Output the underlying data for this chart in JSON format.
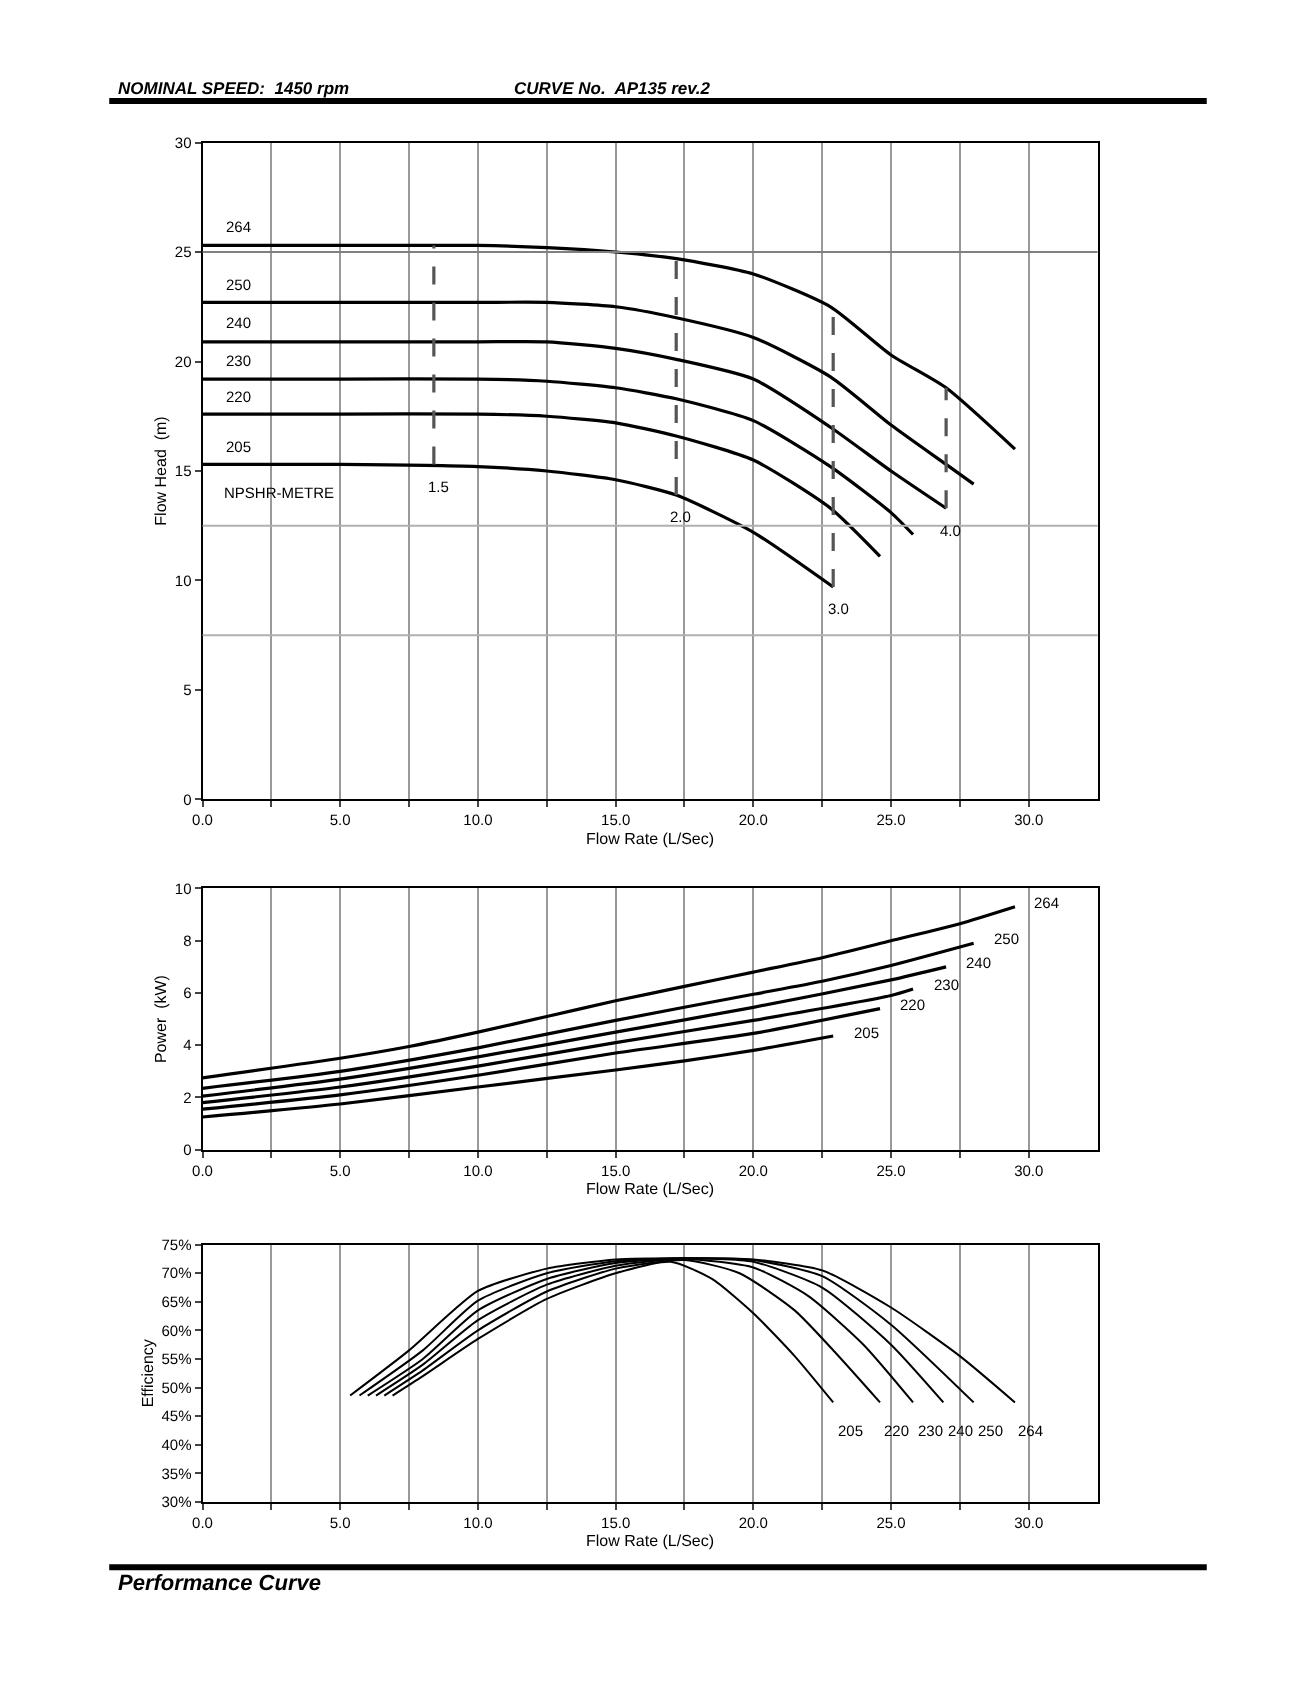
{
  "chart_data": [
    {
      "type": "line",
      "xlabel": "Flow Rate (L/Sec)",
      "ylabel": "Flow Head  (m)",
      "annotations": [
        "NOMINAL SPEED:  1450 rpm",
        "CURVE No.  AP135 rev.2",
        "NPSHR-METRE"
      ],
      "xlim": [
        0,
        32.5
      ],
      "ylim": [
        0,
        30
      ],
      "xticks": [
        {
          "value": 0,
          "label": "0.0"
        },
        {
          "value": 2.5,
          "label": null
        },
        {
          "value": 5,
          "label": "5.0"
        },
        {
          "value": 7.5,
          "label": null
        },
        {
          "value": 10,
          "label": "10.0"
        },
        {
          "value": 12.5,
          "label": null
        },
        {
          "value": 15,
          "label": "15.0"
        },
        {
          "value": 17.5,
          "label": null
        },
        {
          "value": 20,
          "label": "20.0"
        },
        {
          "value": 22.5,
          "label": null
        },
        {
          "value": 25,
          "label": "25.0"
        },
        {
          "value": 27.5,
          "label": null
        },
        {
          "value": 30,
          "label": "30.0"
        }
      ],
      "yticks": [
        0,
        5,
        10,
        15,
        20,
        25,
        30
      ],
      "grid": "x",
      "ref_lines": [
        {
          "axis": "y",
          "value": 25,
          "color": "#808080"
        },
        {
          "axis": "y",
          "value": 12.5,
          "color": "#b0b0b0"
        },
        {
          "axis": "y",
          "value": 7.5,
          "color": "#b0b0b0"
        }
      ],
      "series": [
        {
          "name": "264",
          "color": "#000000",
          "x": [
            0,
            5,
            10,
            12.5,
            15,
            17.2,
            20,
            22.8,
            25,
            27,
            29.5
          ],
          "values": [
            25.3,
            25.3,
            25.3,
            25.2,
            25.0,
            24.7,
            24.0,
            22.5,
            20.3,
            18.8,
            16.0
          ]
        },
        {
          "name": "250",
          "color": "#000000",
          "x": [
            0,
            5,
            10,
            12.5,
            15,
            17.2,
            20,
            22.8,
            25,
            27,
            28
          ],
          "values": [
            22.7,
            22.7,
            22.7,
            22.7,
            22.5,
            22.0,
            21.1,
            19.3,
            17.1,
            15.3,
            14.4
          ]
        },
        {
          "name": "240",
          "color": "#000000",
          "x": [
            0,
            5,
            10,
            12.5,
            15,
            17.2,
            20,
            22.8,
            25,
            27
          ],
          "values": [
            20.9,
            20.9,
            20.9,
            20.9,
            20.6,
            20.1,
            19.2,
            17.0,
            15.0,
            13.3
          ]
        },
        {
          "name": "230",
          "color": "#000000",
          "x": [
            0,
            5,
            10,
            12.5,
            15,
            17.2,
            20,
            22.8,
            25,
            25.8
          ],
          "values": [
            19.2,
            19.2,
            19.2,
            19.1,
            18.8,
            18.3,
            17.3,
            15.2,
            13.1,
            12.1
          ]
        },
        {
          "name": "220",
          "color": "#000000",
          "x": [
            0,
            5,
            10,
            12.5,
            15,
            17.2,
            20,
            22.8,
            24.6
          ],
          "values": [
            17.6,
            17.6,
            17.6,
            17.5,
            17.2,
            16.6,
            15.5,
            13.3,
            11.1
          ]
        },
        {
          "name": "205",
          "color": "#000000",
          "x": [
            0,
            5,
            10,
            12.5,
            15,
            17.2,
            20,
            22.9
          ],
          "values": [
            15.3,
            15.3,
            15.2,
            15.0,
            14.6,
            13.9,
            12.2,
            9.7
          ]
        },
        {
          "name": "1.5",
          "color": "#555555",
          "line_style": "dashed",
          "x": [
            8.4,
            8.4
          ],
          "values": [
            15.3,
            25.3
          ]
        },
        {
          "name": "2.0",
          "color": "#555555",
          "line_style": "dashed",
          "x": [
            17.2,
            17.2
          ],
          "values": [
            13.9,
            24.7
          ]
        },
        {
          "name": "3.0",
          "color": "#555555",
          "line_style": "dashed",
          "x": [
            22.9,
            22.9
          ],
          "values": [
            9.7,
            22.5
          ]
        },
        {
          "name": "4.0",
          "color": "#555555",
          "line_style": "dashed",
          "x": [
            27,
            27
          ],
          "values": [
            13.3,
            18.8
          ]
        }
      ]
    },
    {
      "type": "line",
      "xlabel": "Flow Rate (L/Sec)",
      "ylabel": "Power  (kW)",
      "xlim": [
        0,
        32.5
      ],
      "ylim": [
        0,
        10
      ],
      "xticks": [
        {
          "value": 0,
          "label": "0.0"
        },
        {
          "value": 2.5,
          "label": null
        },
        {
          "value": 5,
          "label": "5.0"
        },
        {
          "value": 7.5,
          "label": null
        },
        {
          "value": 10,
          "label": "10.0"
        },
        {
          "value": 12.5,
          "label": null
        },
        {
          "value": 15,
          "label": "15.0"
        },
        {
          "value": 17.5,
          "label": null
        },
        {
          "value": 20,
          "label": "20.0"
        },
        {
          "value": 22.5,
          "label": null
        },
        {
          "value": 25,
          "label": "25.0"
        },
        {
          "value": 27.5,
          "label": null
        },
        {
          "value": 30,
          "label": "30.0"
        }
      ],
      "yticks": [
        0,
        2,
        4,
        6,
        8,
        10
      ],
      "grid": "x",
      "series": [
        {
          "name": "264",
          "color": "#000000",
          "x": [
            0,
            5,
            7.5,
            10,
            12.5,
            15,
            17.5,
            20,
            22.5,
            25,
            27.5,
            29.5
          ],
          "values": [
            2.75,
            3.5,
            3.95,
            4.5,
            5.1,
            5.7,
            6.25,
            6.8,
            7.35,
            8.0,
            8.65,
            9.3
          ]
        },
        {
          "name": "250",
          "color": "#000000",
          "x": [
            0,
            5,
            10,
            15,
            20,
            22.5,
            25,
            28
          ],
          "values": [
            2.35,
            3.0,
            3.9,
            4.95,
            5.95,
            6.45,
            7.05,
            7.9
          ]
        },
        {
          "name": "240",
          "color": "#000000",
          "x": [
            0,
            5,
            10,
            15,
            20,
            25,
            27
          ],
          "values": [
            2.05,
            2.7,
            3.55,
            4.5,
            5.45,
            6.5,
            7.0
          ]
        },
        {
          "name": "230",
          "color": "#000000",
          "x": [
            0,
            5,
            10,
            15,
            20,
            25,
            25.8
          ],
          "values": [
            1.8,
            2.4,
            3.2,
            4.1,
            4.95,
            5.9,
            6.15
          ]
        },
        {
          "name": "220",
          "color": "#000000",
          "x": [
            0,
            5,
            10,
            15,
            20,
            24.6
          ],
          "values": [
            1.55,
            2.1,
            2.85,
            3.7,
            4.45,
            5.4
          ]
        },
        {
          "name": "205",
          "color": "#000000",
          "x": [
            0,
            5,
            10,
            15,
            17.5,
            20,
            22.9
          ],
          "values": [
            1.25,
            1.75,
            2.4,
            3.05,
            3.4,
            3.8,
            4.35
          ]
        }
      ]
    },
    {
      "type": "line",
      "xlabel": "Flow Rate (L/Sec)",
      "ylabel": "Efficiency",
      "annotations": [
        "Performance Curve"
      ],
      "xlim": [
        0,
        32.5
      ],
      "ylim": [
        30,
        75
      ],
      "xticks": [
        {
          "value": 0,
          "label": "0.0"
        },
        {
          "value": 2.5,
          "label": null
        },
        {
          "value": 5,
          "label": "5.0"
        },
        {
          "value": 7.5,
          "label": null
        },
        {
          "value": 10,
          "label": "10.0"
        },
        {
          "value": 12.5,
          "label": null
        },
        {
          "value": 15,
          "label": "15.0"
        },
        {
          "value": 17.5,
          "label": null
        },
        {
          "value": 20,
          "label": "20.0"
        },
        {
          "value": 22.5,
          "label": null
        },
        {
          "value": 25,
          "label": "25.0"
        },
        {
          "value": 27.5,
          "label": null
        },
        {
          "value": 30,
          "label": "30.0"
        }
      ],
      "yticks": [
        {
          "value": 30,
          "label": "30%"
        },
        {
          "value": 35,
          "label": "35%"
        },
        {
          "value": 40,
          "label": "40%"
        },
        {
          "value": 45,
          "label": "45%"
        },
        {
          "value": 50,
          "label": "50%"
        },
        {
          "value": 55,
          "label": "55%"
        },
        {
          "value": 60,
          "label": "60%"
        },
        {
          "value": 65,
          "label": "65%"
        },
        {
          "value": 70,
          "label": "70%"
        },
        {
          "value": 75,
          "label": "75%"
        }
      ],
      "grid": "x",
      "series": [
        {
          "name": "205",
          "color": "#000000",
          "x": [
            6.9,
            8,
            10,
            12.5,
            15,
            17,
            18.5,
            20,
            21.5,
            22.9
          ],
          "values": [
            48.6,
            52,
            58.5,
            65.5,
            70,
            72,
            69,
            63,
            55.5,
            47.4
          ]
        },
        {
          "name": "220",
          "color": "#000000",
          "x": [
            6.6,
            8,
            10,
            12.5,
            15,
            17.5,
            19.5,
            21.5,
            23,
            24.6
          ],
          "values": [
            48.6,
            53,
            60,
            66.8,
            70.8,
            72.3,
            70,
            63.5,
            56,
            47.4
          ]
        },
        {
          "name": "230",
          "color": "#000000",
          "x": [
            6.3,
            8,
            10,
            12.5,
            15,
            17.5,
            20,
            22,
            24,
            25.8
          ],
          "values": [
            48.6,
            54,
            61.8,
            68,
            71.3,
            72.5,
            71,
            66,
            57.5,
            47.4
          ]
        },
        {
          "name": "240",
          "color": "#000000",
          "x": [
            6.0,
            8,
            10,
            12.5,
            15,
            17.5,
            20,
            22.5,
            25,
            26.9
          ],
          "values": [
            48.6,
            55,
            63.5,
            69,
            71.8,
            72.6,
            72,
            67.5,
            57.5,
            47.4
          ]
        },
        {
          "name": "250",
          "color": "#000000",
          "x": [
            5.7,
            8,
            10,
            12.5,
            15,
            17.5,
            20,
            22.5,
            25,
            28.0
          ],
          "values": [
            48.6,
            56.5,
            65.2,
            70,
            72.1,
            72.6,
            72.3,
            69.5,
            61,
            47.4
          ]
        },
        {
          "name": "264",
          "color": "#000000",
          "x": [
            5.36,
            7.5,
            10,
            12.5,
            15,
            17.5,
            20,
            22.5,
            25,
            27.5,
            29.5
          ],
          "values": [
            48.6,
            56.5,
            66.9,
            70.8,
            72.4,
            72.6,
            72.4,
            70.5,
            64,
            55.5,
            47.4
          ]
        }
      ]
    }
  ]
}
